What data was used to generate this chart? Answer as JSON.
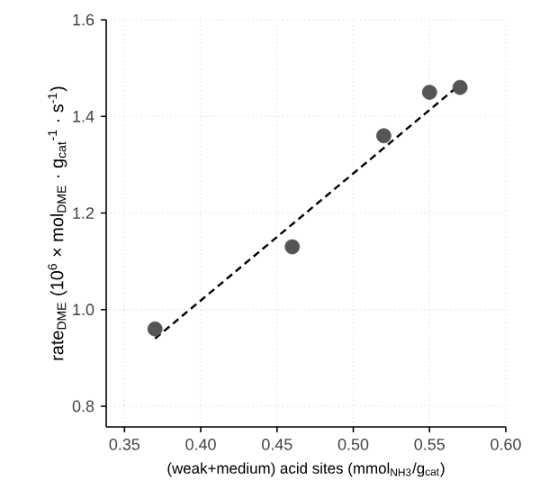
{
  "chart_data": {
    "type": "scatter",
    "xlabel": "(weak+medium) acid sites (mmol$_{NH3}$/g$_{cat}$)",
    "ylabel": "rate$_{DME}$ (10$^{6}$ × mol$_{DME}$ · g$_{cat}$$^{-1}$ · s$^{-1}$)",
    "series": [
      {
        "color": "#555555",
        "marker": "circle",
        "x": [
          0.37,
          0.46,
          0.52,
          0.55,
          0.57
        ],
        "values": [
          0.96,
          1.13,
          1.36,
          1.45,
          1.46
        ]
      },
      {
        "type": "line",
        "color": "#000000",
        "line_style": "dashed",
        "marker": "none",
        "x": [
          0.37,
          0.57
        ],
        "values": [
          0.94,
          1.466
        ]
      }
    ],
    "xlim": [
      0.338,
      0.6
    ],
    "ylim": [
      0.757,
      1.6
    ],
    "xticks": [
      0.35,
      {
        "value": 0.4,
        "label": "0.40"
      },
      0.45,
      {
        "value": 0.5,
        "label": "0.50"
      },
      0.55,
      {
        "value": 0.6,
        "label": "0.60"
      }
    ],
    "yticks": [
      0.8,
      {
        "value": 1.0,
        "label": "1.0"
      },
      1.2,
      1.4,
      1.6
    ],
    "grid": true
  }
}
